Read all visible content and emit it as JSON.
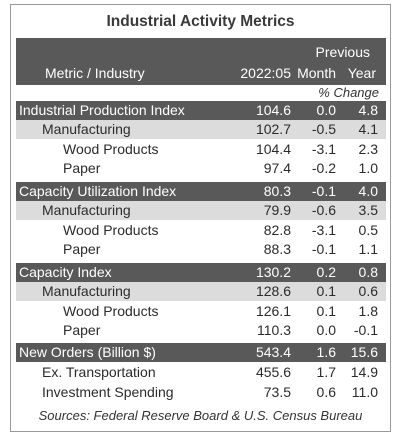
{
  "title": "Industrial Activity Metrics",
  "header": {
    "metric_label": "Metric / Industry",
    "col_current": "2022:05",
    "previous_label": "Previous",
    "col_month": "Month",
    "col_year": "Year",
    "pct_change": "% Change"
  },
  "rows": [
    {
      "name": "Industrial Production Index",
      "value": "104.6",
      "month": "0.0",
      "year": "4.8"
    },
    {
      "name": "Manufacturing",
      "value": "102.7",
      "month": "-0.5",
      "year": "4.1"
    },
    {
      "name": "Wood Products",
      "value": "104.4",
      "month": "-3.1",
      "year": "2.3"
    },
    {
      "name": "Paper",
      "value": "97.4",
      "month": "-0.2",
      "year": "1.0"
    },
    {
      "name": "Capacity Utilization Index",
      "value": "80.3",
      "month": "-0.1",
      "year": "4.0"
    },
    {
      "name": "Manufacturing",
      "value": "79.9",
      "month": "-0.6",
      "year": "3.5"
    },
    {
      "name": "Wood Products",
      "value": "82.8",
      "month": "-3.1",
      "year": "0.5"
    },
    {
      "name": "Paper",
      "value": "88.3",
      "month": "-0.1",
      "year": "1.1"
    },
    {
      "name": "Capacity Index",
      "value": "130.2",
      "month": "0.2",
      "year": "0.8"
    },
    {
      "name": "Manufacturing",
      "value": "128.6",
      "month": "0.1",
      "year": "0.6"
    },
    {
      "name": "Wood Products",
      "value": "126.1",
      "month": "0.1",
      "year": "1.8"
    },
    {
      "name": "Paper",
      "value": "110.3",
      "month": "0.0",
      "year": "-0.1"
    },
    {
      "name": "New Orders (Billion $)",
      "value": "543.4",
      "month": "1.6",
      "year": "15.6"
    },
    {
      "name": "Ex. Transportation",
      "value": "455.6",
      "month": "1.7",
      "year": "14.9"
    },
    {
      "name": "Investment Spending",
      "value": "73.5",
      "month": "0.6",
      "year": "11.0"
    }
  ],
  "source": "Sources: Federal Reserve Board & U.S. Census Bureau"
}
